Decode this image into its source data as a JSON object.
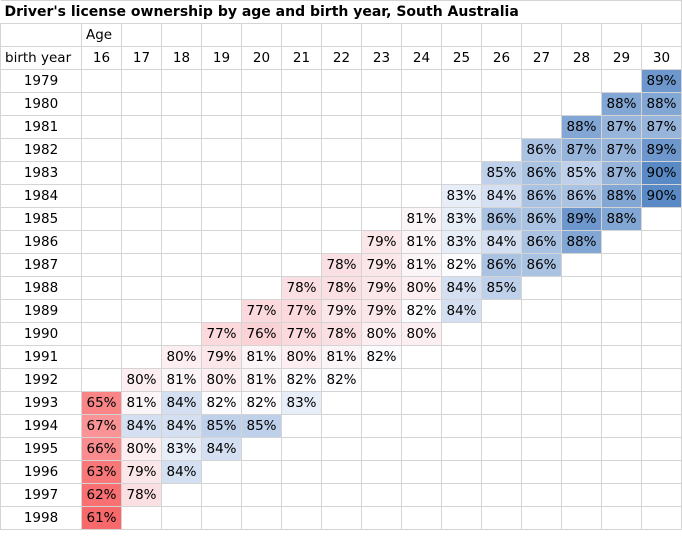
{
  "chart_data": {
    "type": "heatmap",
    "title": "Driver's license ownership by age and birth year, South Australia",
    "xlabel": "Age",
    "ylabel": "birth year",
    "x": [
      16,
      17,
      18,
      19,
      20,
      21,
      22,
      23,
      24,
      25,
      26,
      27,
      28,
      29,
      30
    ],
    "rows": [
      {
        "year": "1979",
        "values": [
          null,
          null,
          null,
          null,
          null,
          null,
          null,
          null,
          null,
          null,
          null,
          null,
          null,
          null,
          89
        ]
      },
      {
        "year": "1980",
        "values": [
          null,
          null,
          null,
          null,
          null,
          null,
          null,
          null,
          null,
          null,
          null,
          null,
          null,
          88,
          88
        ]
      },
      {
        "year": "1981",
        "values": [
          null,
          null,
          null,
          null,
          null,
          null,
          null,
          null,
          null,
          null,
          null,
          null,
          88,
          87,
          87
        ]
      },
      {
        "year": "1982",
        "values": [
          null,
          null,
          null,
          null,
          null,
          null,
          null,
          null,
          null,
          null,
          null,
          86,
          87,
          87,
          89
        ]
      },
      {
        "year": "1983",
        "values": [
          null,
          null,
          null,
          null,
          null,
          null,
          null,
          null,
          null,
          null,
          85,
          86,
          85,
          87,
          90
        ]
      },
      {
        "year": "1984",
        "values": [
          null,
          null,
          null,
          null,
          null,
          null,
          null,
          null,
          null,
          83,
          84,
          86,
          86,
          88,
          90
        ]
      },
      {
        "year": "1985",
        "values": [
          null,
          null,
          null,
          null,
          null,
          null,
          null,
          null,
          81,
          83,
          86,
          86,
          89,
          88,
          null
        ]
      },
      {
        "year": "1986",
        "values": [
          null,
          null,
          null,
          null,
          null,
          null,
          null,
          79,
          81,
          83,
          84,
          86,
          88,
          null,
          null
        ]
      },
      {
        "year": "1987",
        "values": [
          null,
          null,
          null,
          null,
          null,
          null,
          78,
          79,
          81,
          82,
          86,
          86,
          null,
          null,
          null
        ]
      },
      {
        "year": "1988",
        "values": [
          null,
          null,
          null,
          null,
          null,
          78,
          78,
          79,
          80,
          84,
          85,
          null,
          null,
          null,
          null
        ]
      },
      {
        "year": "1989",
        "values": [
          null,
          null,
          null,
          null,
          77,
          77,
          79,
          79,
          82,
          84,
          null,
          null,
          null,
          null,
          null
        ]
      },
      {
        "year": "1990",
        "values": [
          null,
          null,
          null,
          77,
          76,
          77,
          78,
          80,
          80,
          null,
          null,
          null,
          null,
          null,
          null
        ]
      },
      {
        "year": "1991",
        "values": [
          null,
          null,
          80,
          79,
          81,
          80,
          81,
          82,
          null,
          null,
          null,
          null,
          null,
          null,
          null
        ]
      },
      {
        "year": "1992",
        "values": [
          null,
          80,
          81,
          80,
          81,
          82,
          82,
          null,
          null,
          null,
          null,
          null,
          null,
          null,
          null
        ]
      },
      {
        "year": "1993",
        "values": [
          65,
          81,
          84,
          82,
          82,
          83,
          null,
          null,
          null,
          null,
          null,
          null,
          null,
          null,
          null
        ]
      },
      {
        "year": "1994",
        "values": [
          67,
          84,
          84,
          85,
          85,
          null,
          null,
          null,
          null,
          null,
          null,
          null,
          null,
          null,
          null
        ]
      },
      {
        "year": "1995",
        "values": [
          66,
          80,
          83,
          84,
          null,
          null,
          null,
          null,
          null,
          null,
          null,
          null,
          null,
          null,
          null
        ]
      },
      {
        "year": "1996",
        "values": [
          63,
          79,
          84,
          null,
          null,
          null,
          null,
          null,
          null,
          null,
          null,
          null,
          null,
          null,
          null
        ]
      },
      {
        "year": "1997",
        "values": [
          62,
          78,
          null,
          null,
          null,
          null,
          null,
          null,
          null,
          null,
          null,
          null,
          null,
          null,
          null
        ]
      },
      {
        "year": "1998",
        "values": [
          61,
          null,
          null,
          null,
          null,
          null,
          null,
          null,
          null,
          null,
          null,
          null,
          null,
          null,
          null
        ]
      }
    ],
    "unit": "%",
    "color_scale": {
      "min": 61,
      "mid": 82,
      "max": 90,
      "min_color": "#F8696B",
      "mid_color": "#FCFCFF",
      "max_color": "#5A8AC6"
    }
  }
}
